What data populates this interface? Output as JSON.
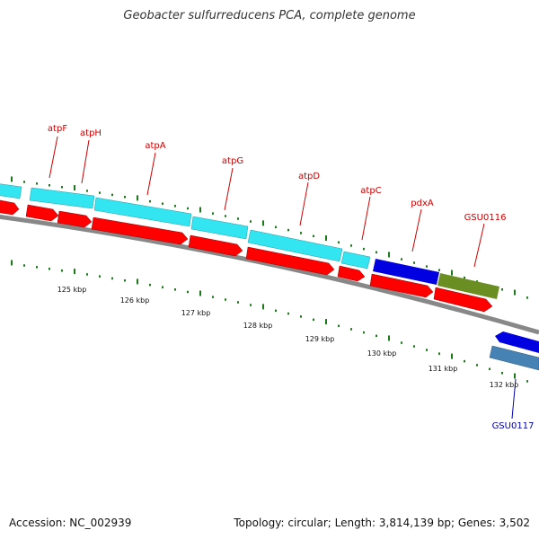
{
  "map": {
    "title": "Geobacter sulfurreducens PCA, complete genome",
    "accession": "Accession: NC_002939",
    "summary": "Topology: circular; Length: 3,814,139 bp; Genes: 3,502"
  },
  "colors": {
    "cds_forward": "#ff0000",
    "cds_reverse": "#ff0000",
    "gene_cyan": "#33e5f0",
    "gene_blue": "#0000e0",
    "gene_olive": "#6b8e23",
    "gene_steel": "#4682b4",
    "backbone": "#888888",
    "tick": "#1a7a1a",
    "label_red": "#cc0000",
    "label_blue": "#0000aa"
  },
  "ticks": {
    "labels": [
      "125 kbp",
      "126 kbp",
      "127 kbp",
      "128 kbp",
      "129 kbp",
      "130 kbp",
      "131 kbp",
      "132 kbp"
    ]
  },
  "genes": [
    {
      "name": "atpF",
      "strand": "+"
    },
    {
      "name": "atpH",
      "strand": "+"
    },
    {
      "name": "atpA",
      "strand": "+"
    },
    {
      "name": "atpG",
      "strand": "+"
    },
    {
      "name": "atpD",
      "strand": "+"
    },
    {
      "name": "atpC",
      "strand": "+"
    },
    {
      "name": "pdxA",
      "strand": "+"
    },
    {
      "name": "GSU0116",
      "strand": "+"
    },
    {
      "name": "GSU0117",
      "strand": "-"
    }
  ]
}
